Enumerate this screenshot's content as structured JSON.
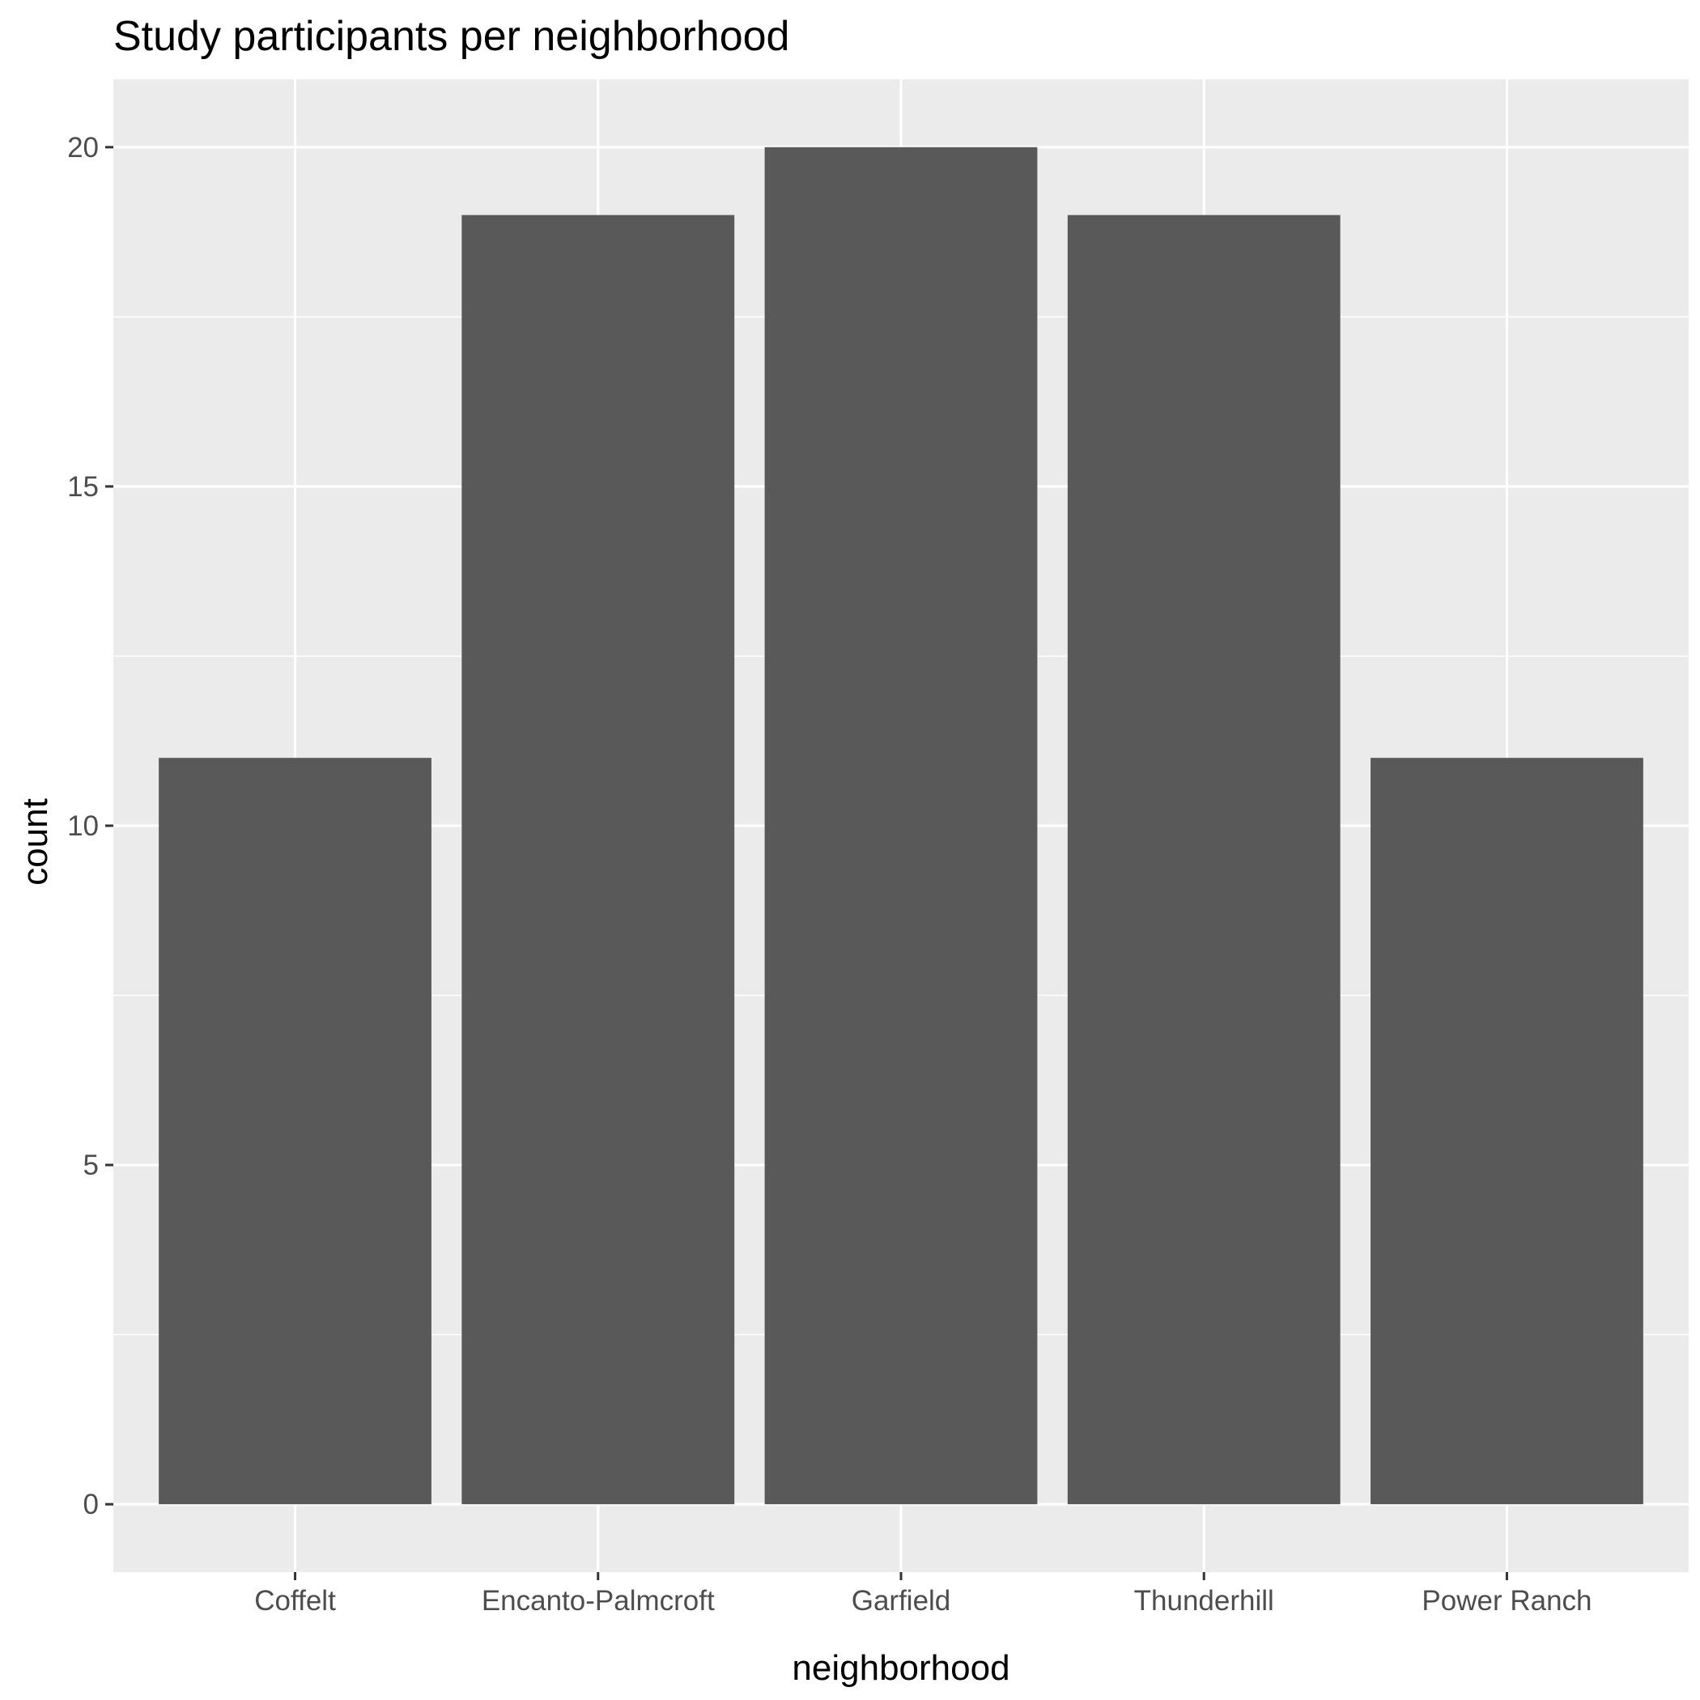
{
  "chart_data": {
    "type": "bar",
    "title": "Study participants per neighborhood",
    "xlabel": "neighborhood",
    "ylabel": "count",
    "categories": [
      "Coffelt",
      "Encanto-Palmcroft",
      "Garfield",
      "Thunderhill",
      "Power Ranch"
    ],
    "values": [
      11,
      19,
      20,
      19,
      11
    ],
    "ylim": [
      -1,
      21
    ],
    "yticks": [
      0,
      5,
      10,
      15,
      20
    ],
    "grid": true,
    "legend": "none"
  },
  "colors": {
    "panel_background": "#EBEBEB",
    "grid_major": "#FFFFFF",
    "bar_fill": "#595959",
    "tick_text": "#4D4D4D",
    "axis_tick": "#333333"
  }
}
